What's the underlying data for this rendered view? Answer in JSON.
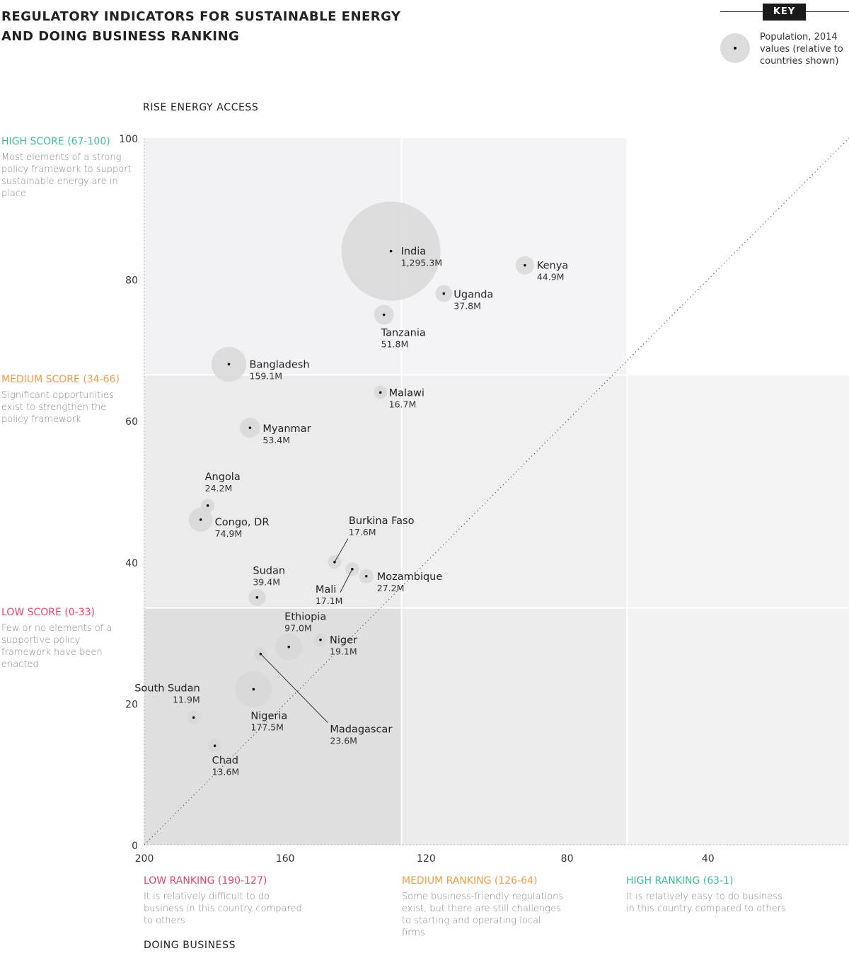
{
  "title": "REGULATORY INDICATORS FOR SUSTAINABLE ENERGY AND DOING BUSINESS RANKING",
  "key": {
    "label": "KEY",
    "description": "Population, 2014 values (relative to countries shown)"
  },
  "y_bands": [
    {
      "heading": "HIGH SCORE (67-100)",
      "description": "Most elements of a strong policy framework to support sustainable energy are in place",
      "color": "#3dbf8f"
    },
    {
      "heading": "MEDIUM SCORE (34-66)",
      "description": "Significant opportunities exist to strengthen the policy framework",
      "color": "#f59a4a"
    },
    {
      "heading": "LOW SCORE (0-33)",
      "description": "Few or no elements of a supportive policy framework have been enacted",
      "color": "#e8476a"
    }
  ],
  "x_bands": [
    {
      "heading": "LOW RANKING (190-127)",
      "description": "It is relatively difficult to do business in this country compared to others",
      "color": "#e8476a"
    },
    {
      "heading": "MEDIUM RANKING (126-64)",
      "description": "Some business-friendly regulations exist, but there are still challenges to starting and operating local firms",
      "color": "#f59a4a"
    },
    {
      "heading": "HIGH RANKING (63-1)",
      "description": "It is relatively easy to do business in this country compared to others",
      "color": "#3dbf8f"
    }
  ],
  "chart_data": {
    "type": "scatter",
    "title": "REGULATORY INDICATORS FOR SUSTAINABLE ENERGY AND DOING BUSINESS RANKING",
    "xlabel": "DOING BUSINESS",
    "ylabel": "RISE ENERGY ACCESS",
    "xlim": [
      200,
      0
    ],
    "ylim": [
      0,
      100
    ],
    "x_reversed": true,
    "x_ticks": [
      "200",
      "160",
      "120",
      "80",
      "40"
    ],
    "y_ticks": [
      "0",
      "20",
      "40",
      "60",
      "80",
      "100"
    ],
    "x_thresholds": [
      127,
      63
    ],
    "y_thresholds": [
      33.5,
      66.5
    ],
    "reference_line": "dotted diagonal from (200,0) to (0,100)",
    "bubble_size": "population 2014 (millions)",
    "points": [
      {
        "name": "India",
        "x": 130,
        "y": 84,
        "pop": 1295.3,
        "pop_label": "1,295.3M"
      },
      {
        "name": "Kenya",
        "x": 92,
        "y": 82,
        "pop": 44.9,
        "pop_label": "44.9M"
      },
      {
        "name": "Uganda",
        "x": 115,
        "y": 78,
        "pop": 37.8,
        "pop_label": "37.8M"
      },
      {
        "name": "Tanzania",
        "x": 132,
        "y": 75,
        "pop": 51.8,
        "pop_label": "51.8M"
      },
      {
        "name": "Bangladesh",
        "x": 176,
        "y": 68,
        "pop": 159.1,
        "pop_label": "159.1M"
      },
      {
        "name": "Malawi",
        "x": 133,
        "y": 64,
        "pop": 16.7,
        "pop_label": "16.7M"
      },
      {
        "name": "Myanmar",
        "x": 170,
        "y": 59,
        "pop": 53.4,
        "pop_label": "53.4M"
      },
      {
        "name": "Angola",
        "x": 182,
        "y": 48,
        "pop": 24.2,
        "pop_label": "24.2M"
      },
      {
        "name": "Congo, DR",
        "x": 184,
        "y": 46,
        "pop": 74.9,
        "pop_label": "74.9M"
      },
      {
        "name": "Burkina Faso",
        "x": 146,
        "y": 40,
        "pop": 17.6,
        "pop_label": "17.6M"
      },
      {
        "name": "Mali",
        "x": 141,
        "y": 39,
        "pop": 17.1,
        "pop_label": "17.1M"
      },
      {
        "name": "Mozambique",
        "x": 137,
        "y": 38,
        "pop": 27.2,
        "pop_label": "27.2M"
      },
      {
        "name": "Sudan",
        "x": 168,
        "y": 35,
        "pop": 39.4,
        "pop_label": "39.4M"
      },
      {
        "name": "Ethiopia",
        "x": 159,
        "y": 28,
        "pop": 97.0,
        "pop_label": "97.0M"
      },
      {
        "name": "Niger",
        "x": 150,
        "y": 29,
        "pop": 19.1,
        "pop_label": "19.1M"
      },
      {
        "name": "Madagascar",
        "x": 167,
        "y": 27,
        "pop": 23.6,
        "pop_label": "23.6M"
      },
      {
        "name": "Nigeria",
        "x": 169,
        "y": 22,
        "pop": 177.5,
        "pop_label": "177.5M"
      },
      {
        "name": "South Sudan",
        "x": 186,
        "y": 18,
        "pop": 11.9,
        "pop_label": "11.9M"
      },
      {
        "name": "Chad",
        "x": 180,
        "y": 14,
        "pop": 13.6,
        "pop_label": "13.6M"
      }
    ]
  }
}
